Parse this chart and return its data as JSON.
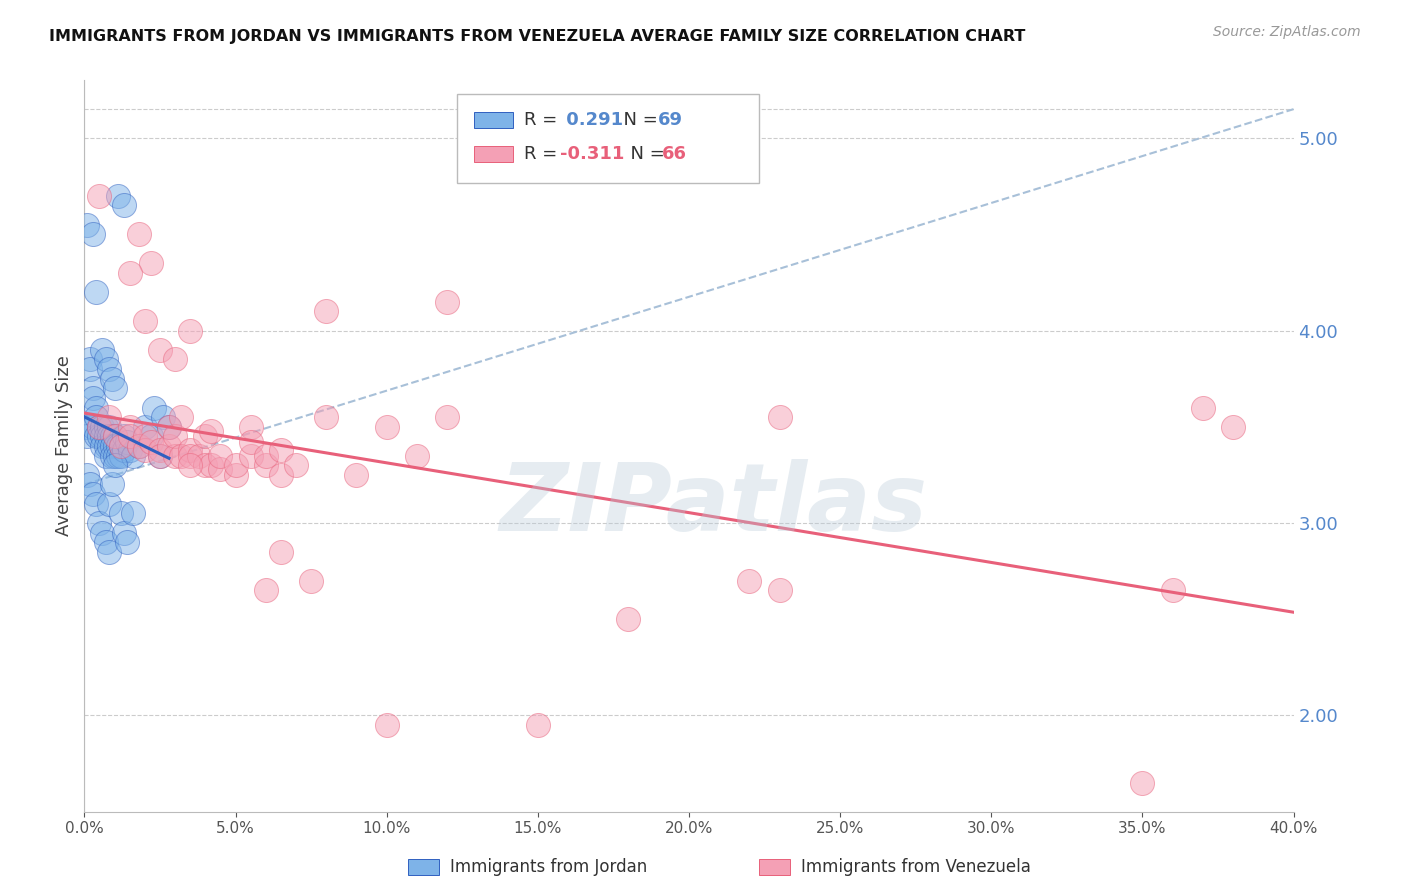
{
  "title": "IMMIGRANTS FROM JORDAN VS IMMIGRANTS FROM VENEZUELA AVERAGE FAMILY SIZE CORRELATION CHART",
  "source": "Source: ZipAtlas.com",
  "ylabel": "Average Family Size",
  "right_yticks": [
    2.0,
    3.0,
    4.0,
    5.0
  ],
  "watermark": "ZIPatlas",
  "legend_jordan": "Immigrants from Jordan",
  "legend_venezuela": "Immigrants from Venezuela",
  "jordan_R": 0.291,
  "jordan_N": 69,
  "venezuela_R": -0.311,
  "venezuela_N": 66,
  "jordan_color": "#7EB3E8",
  "venezuela_color": "#F4A0B5",
  "jordan_line_color": "#3060C0",
  "venezuela_line_color": "#E8607A",
  "ref_line_color": "#A8C0D8",
  "jordan_points": [
    [
      0.001,
      3.5
    ],
    [
      0.001,
      3.45
    ],
    [
      0.002,
      3.85
    ],
    [
      0.002,
      3.8
    ],
    [
      0.003,
      3.7
    ],
    [
      0.003,
      3.65
    ],
    [
      0.003,
      3.5
    ],
    [
      0.004,
      3.6
    ],
    [
      0.004,
      3.55
    ],
    [
      0.004,
      3.45
    ],
    [
      0.005,
      3.5
    ],
    [
      0.005,
      3.45
    ],
    [
      0.006,
      3.5
    ],
    [
      0.006,
      3.45
    ],
    [
      0.006,
      3.4
    ],
    [
      0.007,
      3.5
    ],
    [
      0.007,
      3.45
    ],
    [
      0.007,
      3.4
    ],
    [
      0.007,
      3.35
    ],
    [
      0.008,
      3.5
    ],
    [
      0.008,
      3.45
    ],
    [
      0.008,
      3.4
    ],
    [
      0.009,
      3.45
    ],
    [
      0.009,
      3.4
    ],
    [
      0.009,
      3.35
    ],
    [
      0.01,
      3.45
    ],
    [
      0.01,
      3.4
    ],
    [
      0.01,
      3.35
    ],
    [
      0.011,
      3.4
    ],
    [
      0.011,
      3.35
    ],
    [
      0.012,
      3.4
    ],
    [
      0.012,
      3.35
    ],
    [
      0.013,
      3.45
    ],
    [
      0.013,
      3.38
    ],
    [
      0.014,
      3.42
    ],
    [
      0.015,
      3.38
    ],
    [
      0.016,
      3.35
    ],
    [
      0.018,
      3.4
    ],
    [
      0.02,
      3.5
    ],
    [
      0.022,
      3.45
    ],
    [
      0.023,
      3.6
    ],
    [
      0.025,
      3.35
    ],
    [
      0.026,
      3.55
    ],
    [
      0.028,
      3.5
    ],
    [
      0.001,
      4.55
    ],
    [
      0.003,
      4.5
    ],
    [
      0.004,
      4.2
    ],
    [
      0.006,
      3.9
    ],
    [
      0.007,
      3.85
    ],
    [
      0.008,
      3.8
    ],
    [
      0.009,
      3.75
    ],
    [
      0.01,
      3.7
    ],
    [
      0.011,
      4.7
    ],
    [
      0.013,
      4.65
    ],
    [
      0.001,
      3.25
    ],
    [
      0.002,
      3.2
    ],
    [
      0.003,
      3.15
    ],
    [
      0.004,
      3.1
    ],
    [
      0.005,
      3.0
    ],
    [
      0.006,
      2.95
    ],
    [
      0.007,
      2.9
    ],
    [
      0.008,
      2.85
    ],
    [
      0.008,
      3.1
    ],
    [
      0.009,
      3.2
    ],
    [
      0.01,
      3.3
    ],
    [
      0.012,
      3.05
    ],
    [
      0.013,
      2.95
    ],
    [
      0.014,
      2.9
    ],
    [
      0.016,
      3.05
    ]
  ],
  "venezuela_points": [
    [
      0.005,
      3.5
    ],
    [
      0.008,
      3.55
    ],
    [
      0.01,
      3.45
    ],
    [
      0.012,
      3.4
    ],
    [
      0.015,
      3.5
    ],
    [
      0.015,
      3.45
    ],
    [
      0.018,
      3.4
    ],
    [
      0.018,
      4.5
    ],
    [
      0.02,
      3.45
    ],
    [
      0.02,
      3.38
    ],
    [
      0.022,
      3.42
    ],
    [
      0.022,
      4.35
    ],
    [
      0.025,
      3.38
    ],
    [
      0.025,
      3.35
    ],
    [
      0.028,
      3.4
    ],
    [
      0.028,
      3.5
    ],
    [
      0.03,
      3.35
    ],
    [
      0.03,
      3.45
    ],
    [
      0.032,
      3.35
    ],
    [
      0.032,
      3.55
    ],
    [
      0.035,
      3.38
    ],
    [
      0.035,
      3.35
    ],
    [
      0.035,
      4.0
    ],
    [
      0.038,
      3.35
    ],
    [
      0.04,
      3.3
    ],
    [
      0.04,
      3.45
    ],
    [
      0.042,
      3.3
    ],
    [
      0.042,
      3.48
    ],
    [
      0.045,
      3.28
    ],
    [
      0.045,
      3.35
    ],
    [
      0.05,
      3.25
    ],
    [
      0.05,
      3.3
    ],
    [
      0.055,
      3.5
    ],
    [
      0.055,
      3.35
    ],
    [
      0.055,
      3.42
    ],
    [
      0.06,
      3.3
    ],
    [
      0.06,
      3.35
    ],
    [
      0.065,
      3.25
    ],
    [
      0.065,
      3.38
    ],
    [
      0.07,
      3.3
    ],
    [
      0.08,
      3.55
    ],
    [
      0.08,
      4.1
    ],
    [
      0.09,
      3.25
    ],
    [
      0.1,
      3.5
    ],
    [
      0.11,
      3.35
    ],
    [
      0.12,
      3.55
    ],
    [
      0.12,
      4.15
    ],
    [
      0.005,
      4.7
    ],
    [
      0.015,
      4.3
    ],
    [
      0.02,
      4.05
    ],
    [
      0.025,
      3.9
    ],
    [
      0.03,
      3.85
    ],
    [
      0.035,
      3.3
    ],
    [
      0.06,
      2.65
    ],
    [
      0.065,
      2.85
    ],
    [
      0.075,
      2.7
    ],
    [
      0.1,
      1.95
    ],
    [
      0.15,
      1.95
    ],
    [
      0.18,
      2.5
    ],
    [
      0.22,
      2.7
    ],
    [
      0.23,
      2.65
    ],
    [
      0.23,
      3.55
    ],
    [
      0.35,
      1.65
    ],
    [
      0.36,
      2.65
    ],
    [
      0.37,
      3.6
    ],
    [
      0.38,
      3.5
    ]
  ],
  "xmin": 0.0,
  "xmax": 0.4,
  "ymin": 1.5,
  "ymax": 5.3,
  "background_color": "#FFFFFF",
  "grid_color": "#CCCCCC",
  "title_color": "#111111",
  "right_axis_color": "#5588CC",
  "watermark_color": "#B8CAD8"
}
